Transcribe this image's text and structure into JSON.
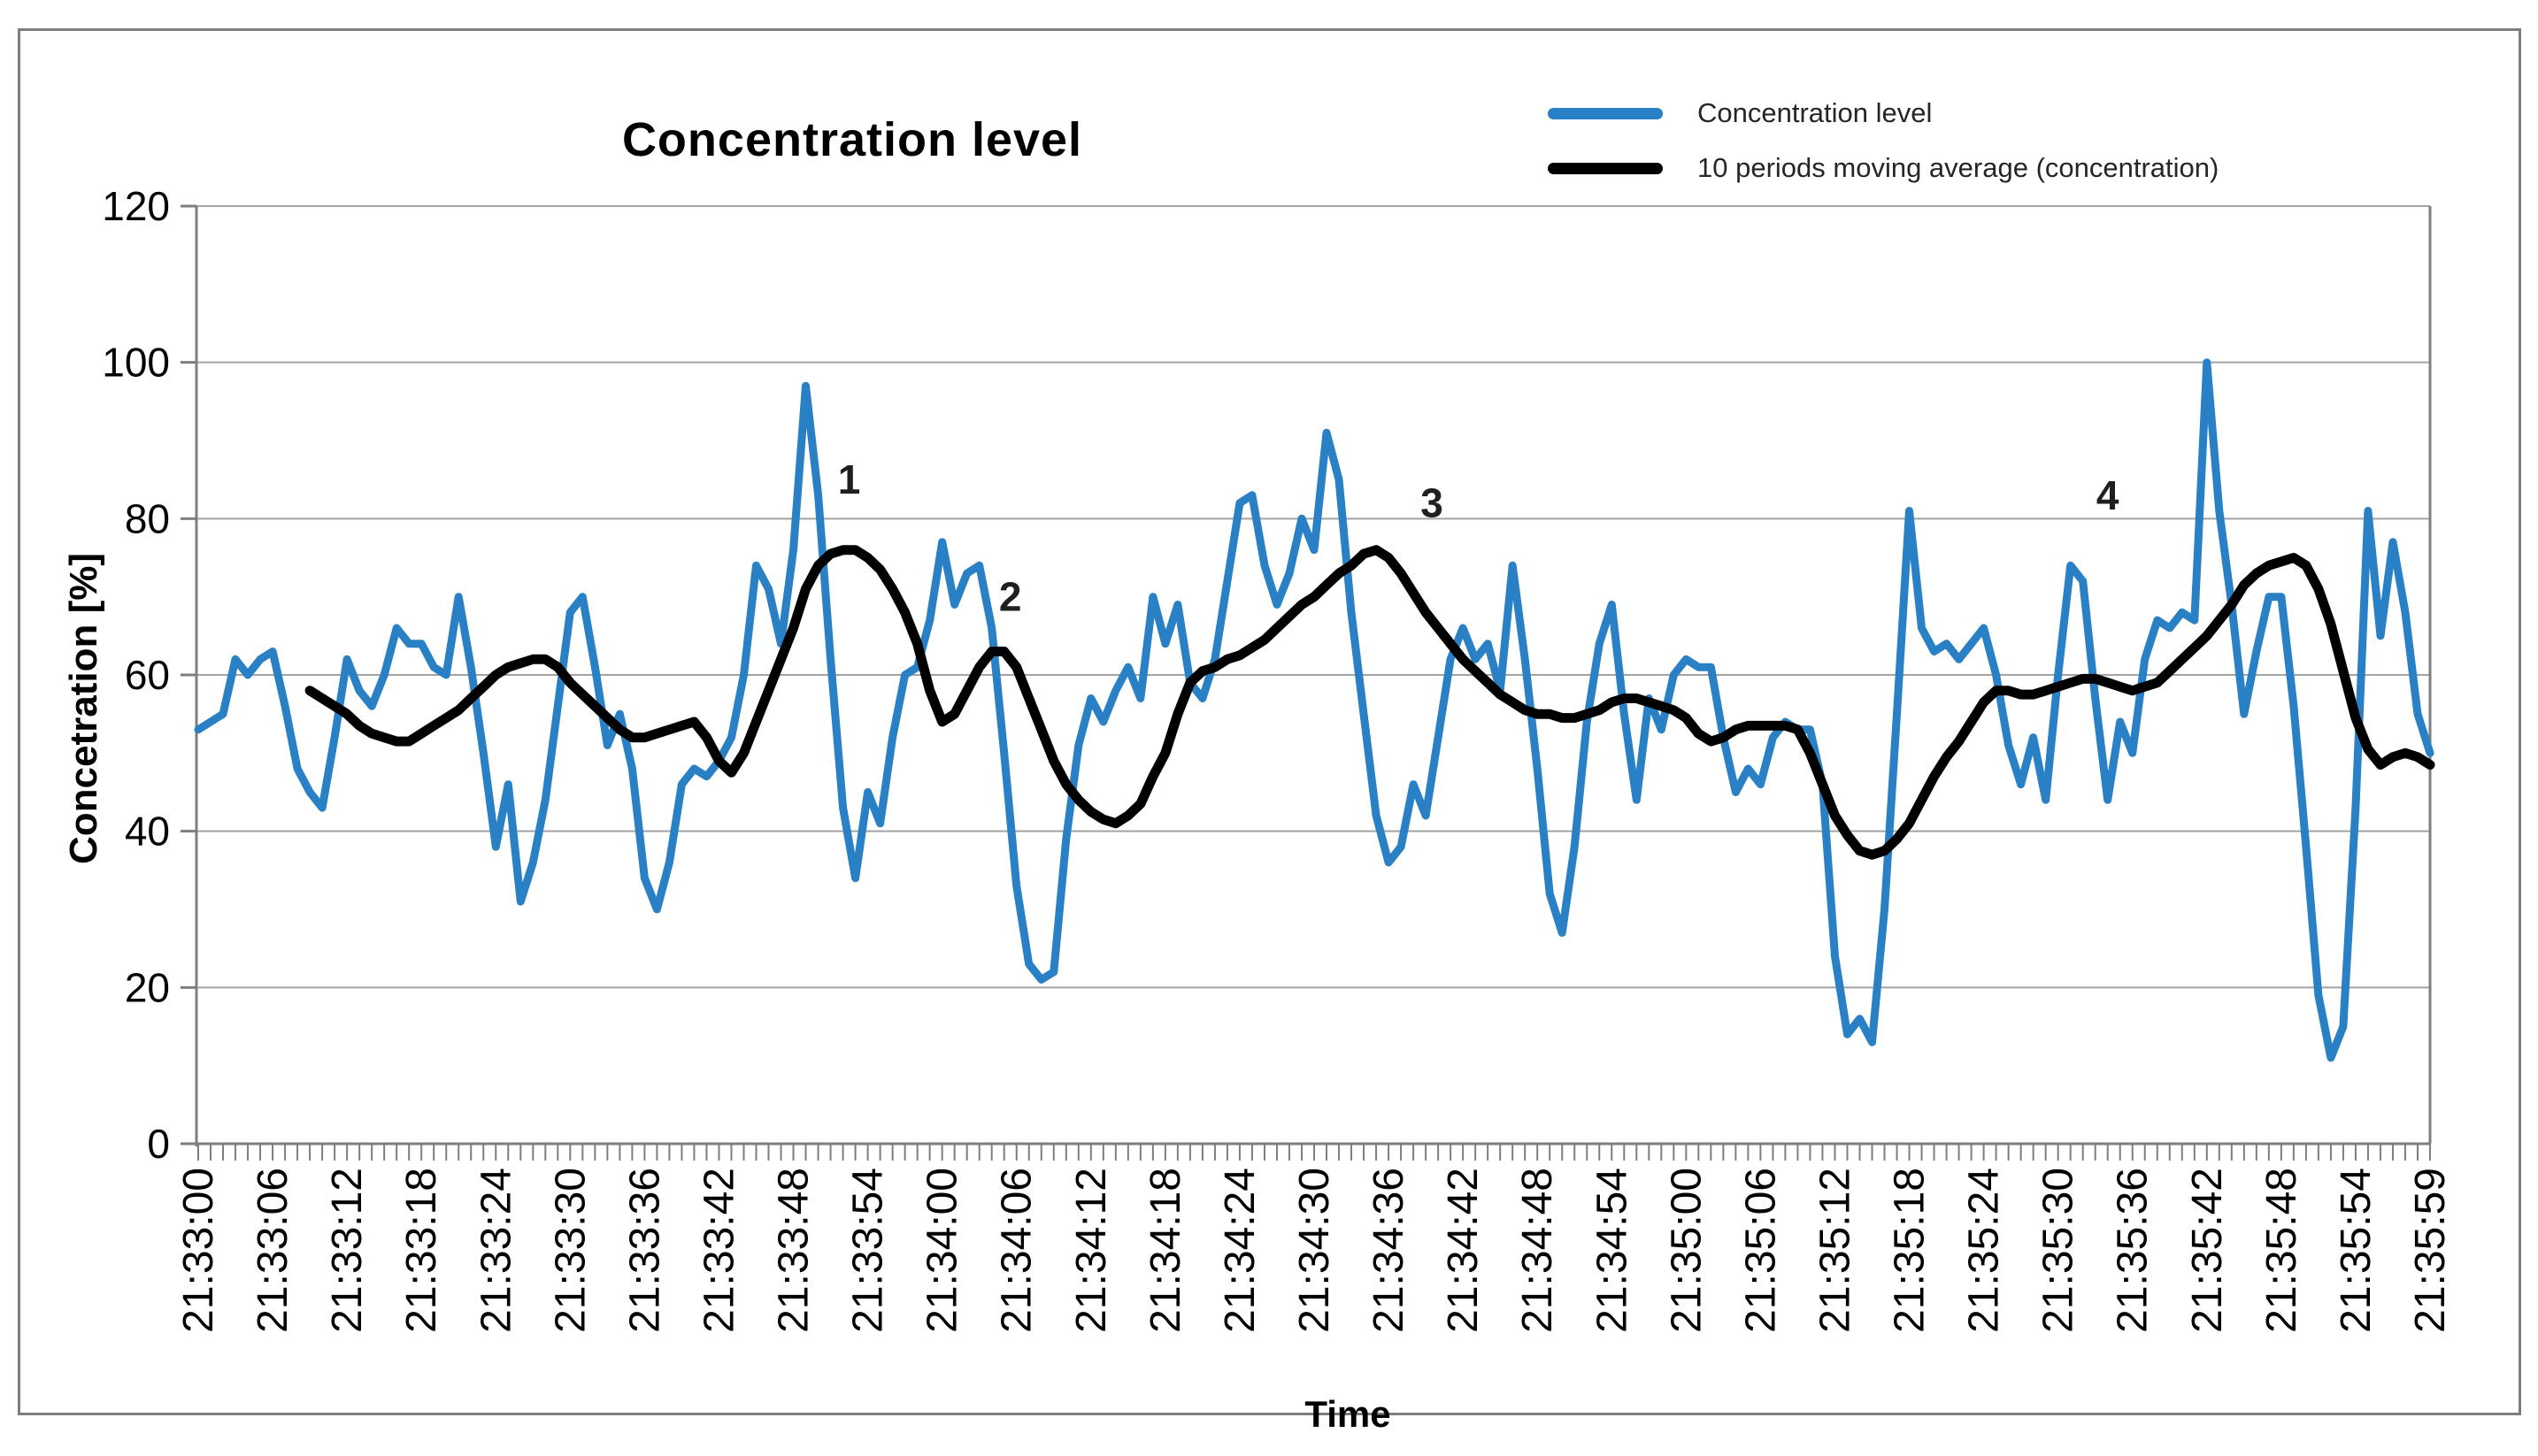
{
  "chart_data": {
    "type": "line",
    "title": "Concentration level",
    "xlabel": "Time",
    "ylabel": "Concetration [%]",
    "ylim": [
      0,
      120
    ],
    "ytick_interval": 20,
    "grid": "horizontal",
    "legend_position": "top-right",
    "x_unit": "time, one point per second starting 21:33:00",
    "x_count": 181,
    "x_ticks": [
      {
        "c": 0,
        "t": "21:33:00"
      },
      {
        "c": 6,
        "t": "21:33:06"
      },
      {
        "c": 12,
        "t": "21:33:12"
      },
      {
        "c": 18,
        "t": "21:33:18"
      },
      {
        "c": 24,
        "t": "21:33:24"
      },
      {
        "c": 30,
        "t": "21:33:30"
      },
      {
        "c": 36,
        "t": "21:33:36"
      },
      {
        "c": 42,
        "t": "21:33:42"
      },
      {
        "c": 48,
        "t": "21:33:48"
      },
      {
        "c": 54,
        "t": "21:33:54"
      },
      {
        "c": 60,
        "t": "21:34:00"
      },
      {
        "c": 66,
        "t": "21:34:06"
      },
      {
        "c": 72,
        "t": "21:34:12"
      },
      {
        "c": 78,
        "t": "21:34:18"
      },
      {
        "c": 84,
        "t": "21:34:24"
      },
      {
        "c": 90,
        "t": "21:34:30"
      },
      {
        "c": 96,
        "t": "21:34:36"
      },
      {
        "c": 102,
        "t": "21:34:42"
      },
      {
        "c": 108,
        "t": "21:34:48"
      },
      {
        "c": 114,
        "t": "21:34:54"
      },
      {
        "c": 120,
        "t": "21:35:00"
      },
      {
        "c": 126,
        "t": "21:35:06"
      },
      {
        "c": 132,
        "t": "21:35:12"
      },
      {
        "c": 138,
        "t": "21:35:18"
      },
      {
        "c": 144,
        "t": "21:35:24"
      },
      {
        "c": 150,
        "t": "21:35:30"
      },
      {
        "c": 156,
        "t": "21:35:36"
      },
      {
        "c": 162,
        "t": "21:35:42"
      },
      {
        "c": 168,
        "t": "21:35:48"
      },
      {
        "c": 174,
        "t": "21:35:54"
      },
      {
        "c": 180,
        "t": "21:35:59"
      }
    ],
    "series": [
      {
        "name": "Concentration level",
        "color": "#2980C4",
        "stroke_width": 9,
        "start_index": 0,
        "values": [
          53,
          54,
          55,
          62,
          60,
          62,
          63,
          56,
          48,
          45,
          43,
          52,
          62,
          58,
          56,
          60,
          66,
          64,
          64,
          61,
          60,
          70,
          61,
          50,
          38,
          46,
          31,
          36,
          44,
          56,
          68,
          70,
          61,
          51,
          55,
          48,
          34,
          30,
          36,
          46,
          48,
          47,
          49,
          52,
          60,
          74,
          71,
          64,
          76,
          97,
          83,
          62,
          43,
          34,
          45,
          41,
          52,
          60,
          61,
          67,
          77,
          69,
          73,
          74,
          66,
          50,
          33,
          23,
          21,
          22,
          39,
          51,
          57,
          54,
          58,
          61,
          57,
          70,
          64,
          69,
          59,
          57,
          62,
          72,
          82,
          83,
          74,
          69,
          73,
          80,
          76,
          91,
          85,
          68,
          55,
          42,
          36,
          38,
          46,
          42,
          52,
          62,
          66,
          62,
          64,
          58,
          74,
          62,
          48,
          32,
          27,
          38,
          54,
          64,
          69,
          55,
          44,
          57,
          53,
          60,
          62,
          61,
          61,
          52,
          45,
          48,
          46,
          52,
          54,
          53,
          53,
          46,
          24,
          14,
          16,
          13,
          30,
          55,
          81,
          66,
          63,
          64,
          62,
          64,
          66,
          60,
          51,
          46,
          52,
          44,
          60,
          74,
          72,
          57,
          44,
          54,
          50,
          62,
          67,
          66,
          68,
          67,
          100,
          81,
          69,
          55,
          63,
          70,
          70,
          56,
          38,
          19,
          11,
          15,
          43,
          81,
          65,
          77,
          68,
          55,
          50
        ]
      },
      {
        "name": "10 periods moving average (concentration)",
        "color": "#000000",
        "stroke_width": 11,
        "start_index": 9,
        "values": [
          58,
          57,
          56,
          55,
          53.5,
          52.5,
          52,
          51.5,
          51.5,
          52.5,
          53.5,
          54.5,
          55.5,
          57,
          58.5,
          60,
          61,
          61.5,
          62,
          62,
          61,
          59,
          57.5,
          56,
          54.5,
          53,
          52,
          52,
          52.5,
          53,
          53.5,
          54,
          52,
          49,
          47.5,
          50,
          54,
          58,
          62,
          66,
          71,
          74,
          75.5,
          76,
          76,
          75,
          73.5,
          71,
          68,
          64,
          58,
          54,
          55,
          58,
          61,
          63,
          63,
          61,
          57,
          53,
          49,
          46,
          44,
          42.5,
          41.5,
          41,
          42,
          43.5,
          47,
          50,
          55,
          59,
          60.5,
          61,
          62,
          62.5,
          63.5,
          64.5,
          66,
          67.5,
          69,
          70,
          71.5,
          73,
          74,
          75.5,
          76,
          75,
          73,
          70.5,
          68,
          66,
          64,
          62,
          60.5,
          59,
          57.5,
          56.5,
          55.5,
          55,
          55,
          54.5,
          54.5,
          55,
          55.5,
          56.5,
          57,
          57,
          56.5,
          56,
          55.5,
          54.5,
          52.5,
          51.5,
          52,
          53,
          53.5,
          53.5,
          53.5,
          53.5,
          53,
          50,
          46,
          42,
          39.5,
          37.5,
          37,
          37.5,
          39,
          41,
          44,
          47,
          49.5,
          51.5,
          54,
          56.5,
          58,
          58,
          57.5,
          57.5,
          58,
          58.5,
          59,
          59.5,
          59.5,
          59,
          58.5,
          58,
          58.5,
          59,
          60.5,
          62,
          63.5,
          65,
          67,
          69,
          71.5,
          73,
          74,
          74.5,
          75,
          74,
          71,
          66.5,
          60.5,
          54.5,
          50.5,
          48.5,
          49.5,
          50,
          49.5,
          48.5
        ]
      }
    ],
    "annotations": [
      {
        "text": "1",
        "cat": 52.5,
        "value": 85
      },
      {
        "text": "2",
        "cat": 65.5,
        "value": 70
      },
      {
        "text": "3",
        "cat": 99.5,
        "value": 82
      },
      {
        "text": "4",
        "cat": 154,
        "value": 83
      }
    ],
    "colors": {
      "gridline": "#a3a3a3",
      "axis": "#7e7e7e",
      "tick_text": "#000000",
      "annotation_text": "#1f1f1f"
    }
  }
}
